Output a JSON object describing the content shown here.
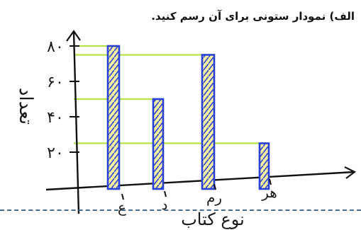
{
  "title": "الف) نمودار ستونی برای آن رسم کنید.",
  "chart_data": {
    "type": "bar",
    "categories": [
      "ع",
      "د",
      "رم",
      "هر"
    ],
    "values": [
      80,
      50,
      75,
      25
    ],
    "xlabel": "نوع کتاب",
    "ylabel": "تعداد",
    "yticks": [
      "۲۰",
      "۴۰",
      "۶۰",
      "۸۰"
    ],
    "ytick_values": [
      20,
      40,
      60,
      80
    ],
    "ylim": [
      0,
      90
    ],
    "grid": false,
    "colors": {
      "bar_outline": "#2a3fd6",
      "bar_fill": "#f3f0a0",
      "hatch": "#2a3fd6",
      "guide": "#b6e34a",
      "axis": "#111111"
    }
  }
}
